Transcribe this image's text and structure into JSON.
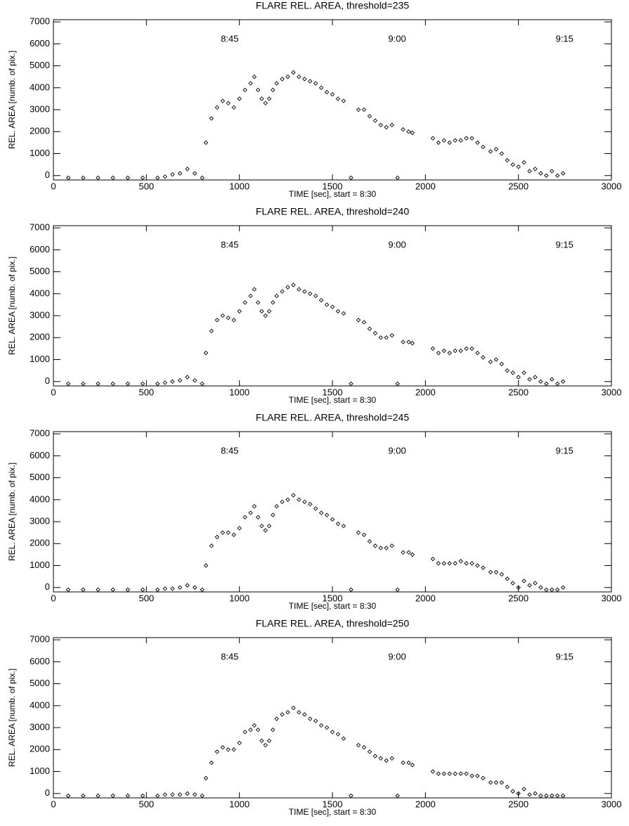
{
  "chart_data": [
    {
      "type": "scatter",
      "title": "FLARE REL. AREA, threshold=235",
      "xlabel": "TIME [sec], start = 8:30",
      "ylabel": "REL. AREA [numb. of pix.]",
      "xlim": [
        0,
        3000
      ],
      "ylim": [
        -200,
        7100
      ],
      "xticks": [
        0,
        500,
        1000,
        1500,
        2000,
        2500,
        3000
      ],
      "yticks": [
        0,
        1000,
        2000,
        3000,
        4000,
        5000,
        6000,
        7000
      ],
      "marker": "diamond",
      "color": "#000000",
      "annotations": [
        {
          "text": "8:45",
          "x": 900,
          "y": 6200
        },
        {
          "text": "9:00",
          "x": 1800,
          "y": 6200
        },
        {
          "text": "9:15",
          "x": 2700,
          "y": 6200
        }
      ],
      "x": [
        80,
        160,
        240,
        320,
        400,
        480,
        560,
        600,
        640,
        680,
        720,
        760,
        800,
        820,
        850,
        880,
        910,
        940,
        970,
        1000,
        1030,
        1060,
        1080,
        1100,
        1120,
        1140,
        1160,
        1180,
        1200,
        1230,
        1260,
        1290,
        1320,
        1350,
        1380,
        1410,
        1440,
        1470,
        1500,
        1530,
        1560,
        1600,
        1640,
        1670,
        1700,
        1730,
        1760,
        1790,
        1820,
        1850,
        1880,
        1910,
        1930,
        2040,
        2070,
        2100,
        2130,
        2160,
        2190,
        2220,
        2250,
        2280,
        2310,
        2350,
        2380,
        2410,
        2440,
        2470,
        2500,
        2530,
        2560,
        2590,
        2620,
        2650,
        2680,
        2710,
        2740
      ],
      "values": [
        -100,
        -100,
        -100,
        -100,
        -100,
        -100,
        -100,
        -50,
        50,
        100,
        300,
        100,
        -100,
        1500,
        2600,
        3100,
        3400,
        3300,
        3100,
        3500,
        3900,
        4200,
        4500,
        3900,
        3500,
        3300,
        3500,
        3900,
        4200,
        4400,
        4500,
        4700,
        4500,
        4400,
        4300,
        4200,
        4000,
        3800,
        3700,
        3500,
        3400,
        -100,
        3000,
        3000,
        2700,
        2500,
        2300,
        2200,
        2300,
        -100,
        2100,
        2000,
        1950,
        1700,
        1500,
        1600,
        1500,
        1600,
        1600,
        1700,
        1700,
        1500,
        1300,
        1100,
        1200,
        1000,
        700,
        500,
        400,
        600,
        200,
        300,
        100,
        0,
        200,
        0,
        100
      ]
    },
    {
      "type": "scatter",
      "title": "FLARE REL. AREA, threshold=240",
      "xlabel": "TIME [sec], start = 8:30",
      "ylabel": "REL. AREA [numb. of pix.]",
      "xlim": [
        0,
        3000
      ],
      "ylim": [
        -200,
        7100
      ],
      "xticks": [
        0,
        500,
        1000,
        1500,
        2000,
        2500,
        3000
      ],
      "yticks": [
        0,
        1000,
        2000,
        3000,
        4000,
        5000,
        6000,
        7000
      ],
      "marker": "diamond",
      "color": "#000000",
      "annotations": [
        {
          "text": "8:45",
          "x": 900,
          "y": 6200
        },
        {
          "text": "9:00",
          "x": 1800,
          "y": 6200
        },
        {
          "text": "9:15",
          "x": 2700,
          "y": 6200
        }
      ],
      "x": [
        80,
        160,
        240,
        320,
        400,
        480,
        560,
        600,
        640,
        680,
        720,
        760,
        800,
        820,
        850,
        880,
        910,
        940,
        970,
        1000,
        1030,
        1060,
        1080,
        1100,
        1120,
        1140,
        1160,
        1180,
        1200,
        1230,
        1260,
        1290,
        1320,
        1350,
        1380,
        1410,
        1440,
        1470,
        1500,
        1530,
        1560,
        1600,
        1640,
        1670,
        1700,
        1730,
        1760,
        1790,
        1820,
        1850,
        1880,
        1910,
        1930,
        2040,
        2070,
        2100,
        2130,
        2160,
        2190,
        2220,
        2250,
        2280,
        2310,
        2350,
        2380,
        2410,
        2440,
        2470,
        2500,
        2530,
        2560,
        2590,
        2620,
        2650,
        2680,
        2710,
        2740
      ],
      "values": [
        -100,
        -100,
        -100,
        -100,
        -100,
        -100,
        -100,
        -50,
        0,
        50,
        200,
        50,
        -100,
        1300,
        2300,
        2800,
        3000,
        2900,
        2800,
        3200,
        3600,
        3900,
        4200,
        3600,
        3200,
        3000,
        3200,
        3600,
        3900,
        4100,
        4300,
        4400,
        4200,
        4100,
        4000,
        3900,
        3700,
        3500,
        3400,
        3200,
        3100,
        -100,
        2800,
        2700,
        2400,
        2200,
        2000,
        2000,
        2100,
        -100,
        1800,
        1800,
        1750,
        1500,
        1300,
        1400,
        1300,
        1400,
        1400,
        1500,
        1500,
        1300,
        1100,
        900,
        1000,
        800,
        500,
        400,
        200,
        400,
        100,
        200,
        0,
        -100,
        100,
        -100,
        0
      ]
    },
    {
      "type": "scatter",
      "title": "FLARE REL. AREA, threshold=245",
      "xlabel": "TIME [sec], start = 8:30",
      "ylabel": "REL. AREA [numb. of pix.]",
      "xlim": [
        0,
        3000
      ],
      "ylim": [
        -200,
        7100
      ],
      "xticks": [
        0,
        500,
        1000,
        1500,
        2000,
        2500,
        3000
      ],
      "yticks": [
        0,
        1000,
        2000,
        3000,
        4000,
        5000,
        6000,
        7000
      ],
      "marker": "diamond",
      "color": "#000000",
      "annotations": [
        {
          "text": "8:45",
          "x": 900,
          "y": 6200
        },
        {
          "text": "9:00",
          "x": 1800,
          "y": 6200
        },
        {
          "text": "9:15",
          "x": 2700,
          "y": 6200
        }
      ],
      "x": [
        80,
        160,
        240,
        320,
        400,
        480,
        560,
        600,
        640,
        680,
        720,
        760,
        800,
        820,
        850,
        880,
        910,
        940,
        970,
        1000,
        1030,
        1060,
        1080,
        1100,
        1120,
        1140,
        1160,
        1180,
        1200,
        1230,
        1260,
        1290,
        1320,
        1350,
        1380,
        1410,
        1440,
        1470,
        1500,
        1530,
        1560,
        1600,
        1640,
        1670,
        1700,
        1730,
        1760,
        1790,
        1820,
        1850,
        1880,
        1910,
        1930,
        2040,
        2070,
        2100,
        2130,
        2160,
        2190,
        2220,
        2250,
        2280,
        2310,
        2350,
        2380,
        2410,
        2440,
        2470,
        2500,
        2530,
        2560,
        2590,
        2620,
        2650,
        2680,
        2710,
        2740
      ],
      "values": [
        -100,
        -100,
        -100,
        -100,
        -100,
        -100,
        -100,
        -50,
        -50,
        0,
        100,
        0,
        -100,
        1000,
        1900,
        2300,
        2500,
        2500,
        2400,
        2700,
        3200,
        3400,
        3700,
        3200,
        2800,
        2600,
        2800,
        3300,
        3700,
        3900,
        4000,
        4200,
        4000,
        3900,
        3800,
        3600,
        3400,
        3300,
        3100,
        2900,
        2800,
        -100,
        2500,
        2400,
        2100,
        1900,
        1800,
        1800,
        1900,
        -100,
        1600,
        1600,
        1500,
        1300,
        1100,
        1100,
        1100,
        1100,
        1200,
        1100,
        1100,
        1000,
        900,
        700,
        700,
        600,
        400,
        200,
        0,
        300,
        100,
        200,
        0,
        -100,
        -100,
        -100,
        0
      ]
    },
    {
      "type": "scatter",
      "title": "FLARE REL. AREA, threshold=250",
      "xlabel": "TIME [sec], start = 8:30",
      "ylabel": "REL. AREA [numb. of pix.]",
      "xlim": [
        0,
        3000
      ],
      "ylim": [
        -200,
        7100
      ],
      "xticks": [
        0,
        500,
        1000,
        1500,
        2000,
        2500,
        3000
      ],
      "yticks": [
        0,
        1000,
        2000,
        3000,
        4000,
        5000,
        6000,
        7000
      ],
      "marker": "diamond",
      "color": "#000000",
      "annotations": [
        {
          "text": "8:45",
          "x": 900,
          "y": 6200
        },
        {
          "text": "9:00",
          "x": 1800,
          "y": 6200
        },
        {
          "text": "9:15",
          "x": 2700,
          "y": 6200
        }
      ],
      "x": [
        80,
        160,
        240,
        320,
        400,
        480,
        560,
        600,
        640,
        680,
        720,
        760,
        800,
        820,
        850,
        880,
        910,
        940,
        970,
        1000,
        1030,
        1060,
        1080,
        1100,
        1120,
        1140,
        1160,
        1180,
        1200,
        1230,
        1260,
        1290,
        1320,
        1350,
        1380,
        1410,
        1440,
        1470,
        1500,
        1530,
        1560,
        1600,
        1640,
        1670,
        1700,
        1730,
        1760,
        1790,
        1820,
        1850,
        1880,
        1910,
        1930,
        2040,
        2070,
        2100,
        2130,
        2160,
        2190,
        2220,
        2250,
        2280,
        2310,
        2350,
        2380,
        2410,
        2440,
        2470,
        2500,
        2530,
        2560,
        2590,
        2620,
        2650,
        2680,
        2710,
        2740
      ],
      "values": [
        -100,
        -100,
        -100,
        -100,
        -100,
        -100,
        -100,
        -50,
        -50,
        -50,
        0,
        -50,
        -100,
        700,
        1400,
        1900,
        2100,
        2000,
        2000,
        2300,
        2800,
        2900,
        3100,
        2900,
        2400,
        2200,
        2400,
        2900,
        3400,
        3600,
        3700,
        3900,
        3700,
        3600,
        3400,
        3300,
        3100,
        3000,
        2800,
        2700,
        2500,
        -100,
        2200,
        2100,
        1900,
        1700,
        1600,
        1500,
        1600,
        -100,
        1400,
        1400,
        1300,
        1000,
        900,
        900,
        900,
        900,
        900,
        900,
        800,
        800,
        700,
        500,
        500,
        500,
        300,
        100,
        0,
        200,
        -50,
        0,
        -100,
        -100,
        -100,
        -100,
        -100
      ]
    }
  ]
}
